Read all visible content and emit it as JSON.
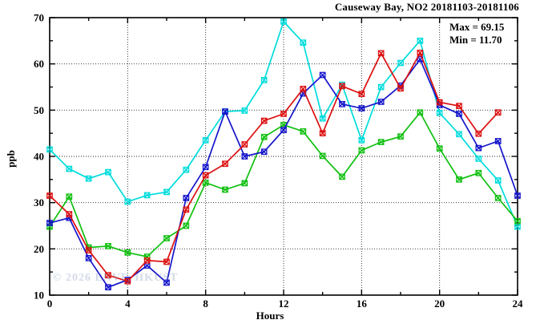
{
  "title": "Causeway Bay, NO2 20181103-20181106",
  "stats": {
    "max_label": "Max = 69.15",
    "min_label": "Min = 11.70"
  },
  "watermark": "© 2026 ENVF, HKUST",
  "axes": {
    "x_label": "Hours",
    "y_label": "ppb"
  },
  "chart_data": {
    "type": "line",
    "title": "Causeway Bay, NO2 20181103-20181106",
    "xlabel": "Hours",
    "ylabel": "ppb",
    "xlim": [
      0,
      24
    ],
    "ylim": [
      10,
      70
    ],
    "x_major_ticks": [
      0,
      4,
      8,
      12,
      16,
      20,
      24
    ],
    "x_minor_ticks": [
      2,
      6,
      10,
      14,
      18,
      22
    ],
    "y_major_ticks": [
      10,
      20,
      30,
      40,
      50,
      60,
      70
    ],
    "y_minor_ticks": [
      15,
      25,
      35,
      45,
      55,
      65
    ],
    "x_gridlines": [
      4,
      8,
      12,
      16,
      20
    ],
    "y_gridlines": [
      20,
      30,
      40,
      50,
      60
    ],
    "grid": true,
    "legend_position": "none",
    "annotations": {
      "max": 69.15,
      "min": 11.7
    },
    "x": [
      0,
      1,
      2,
      3,
      4,
      5,
      6,
      7,
      8,
      9,
      10,
      11,
      12,
      13,
      14,
      15,
      16,
      17,
      18,
      19,
      20,
      21,
      22,
      23,
      24
    ],
    "series": [
      {
        "name": "cyan-series",
        "color": "#00dcdc",
        "values": [
          41.5,
          37.3,
          35.2,
          36.6,
          30.2,
          31.6,
          32.3,
          37.1,
          43.5,
          49.7,
          49.9,
          56.5,
          69.15,
          64.6,
          48.2,
          55.5,
          43.5,
          55.0,
          60.2,
          65.0,
          49.4,
          44.8,
          39.5,
          34.8,
          24.8
        ]
      },
      {
        "name": "green-series",
        "color": "#10c010",
        "values": [
          24.8,
          31.3,
          20.3,
          20.6,
          19.2,
          18.3,
          22.3,
          25.0,
          34.3,
          32.8,
          34.2,
          44.2,
          46.8,
          45.4,
          40.1,
          35.6,
          41.3,
          43.1,
          44.3,
          49.5,
          41.7,
          35.0,
          36.4,
          31.0,
          26.0
        ]
      },
      {
        "name": "blue-series",
        "color": "#1515cc",
        "values": [
          25.6,
          26.7,
          18.0,
          11.7,
          13.3,
          16.4,
          12.7,
          31.0,
          37.7,
          49.7,
          40.0,
          41.0,
          45.7,
          53.6,
          57.6,
          51.3,
          50.4,
          51.8,
          55.3,
          61.0,
          51.1,
          49.2,
          41.8,
          43.3,
          31.5
        ]
      },
      {
        "name": "red-series",
        "color": "#dd1010",
        "values": [
          31.5,
          27.5,
          19.7,
          14.3,
          13.0,
          17.5,
          17.2,
          28.5,
          35.9,
          38.4,
          42.6,
          47.7,
          49.2,
          54.6,
          45.0,
          55.2,
          53.5,
          62.3,
          54.7,
          62.4,
          51.7,
          50.9,
          44.9,
          49.5,
          null
        ]
      }
    ]
  }
}
